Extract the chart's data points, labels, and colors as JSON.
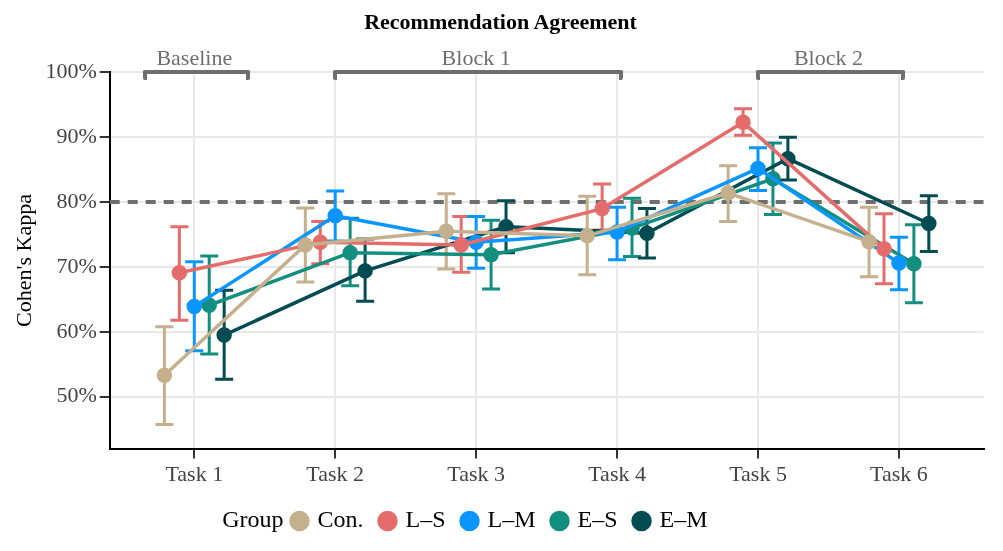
{
  "chart_data": {
    "type": "line",
    "title": "Recommendation Agreement",
    "ylabel": "Cohen's Kappa",
    "legend_title": "Group",
    "categories": [
      "Task 1",
      "Task 2",
      "Task 3",
      "Task 4",
      "Task 5",
      "Task 6"
    ],
    "series": [
      {
        "name": "Con.",
        "color": "#c4b08c",
        "values": [
          53.3,
          73.4,
          75.5,
          74.8,
          81.4,
          73.9
        ],
        "errors": [
          [
            45.7,
            60.8
          ],
          [
            67.7,
            79.1
          ],
          [
            69.7,
            81.3
          ],
          [
            68.8,
            80.9
          ],
          [
            77.0,
            85.6
          ],
          [
            68.5,
            79.2
          ]
        ]
      },
      {
        "name": "L–S",
        "color": "#e46c6a",
        "values": [
          69.1,
          73.8,
          73.4,
          79.0,
          92.3,
          72.8
        ],
        "errors": [
          [
            61.8,
            76.2
          ],
          [
            70.5,
            77.0
          ],
          [
            69.2,
            77.8
          ],
          [
            75.7,
            82.8
          ],
          [
            90.3,
            94.4
          ],
          [
            67.4,
            78.2
          ]
        ]
      },
      {
        "name": "L–M",
        "color": "#0b96ff",
        "values": [
          63.9,
          77.9,
          73.8,
          75.4,
          85.2,
          70.6
        ],
        "errors": [
          [
            57.1,
            70.8
          ],
          [
            74.0,
            81.7
          ],
          [
            69.8,
            77.8
          ],
          [
            71.1,
            79.2
          ],
          [
            81.8,
            88.4
          ],
          [
            66.5,
            74.6
          ]
        ]
      },
      {
        "name": "E–S",
        "color": "#138f80",
        "values": [
          64.1,
          72.2,
          71.9,
          76.0,
          83.6,
          70.5
        ],
        "errors": [
          [
            56.6,
            71.7
          ],
          [
            67.1,
            77.5
          ],
          [
            66.6,
            77.2
          ],
          [
            71.6,
            80.6
          ],
          [
            78.1,
            89.1
          ],
          [
            64.5,
            76.5
          ]
        ]
      },
      {
        "name": "E–M",
        "color": "#004c52",
        "values": [
          59.5,
          69.4,
          76.2,
          75.2,
          86.7,
          76.7
        ],
        "errors": [
          [
            52.7,
            66.4
          ],
          [
            64.7,
            74.3
          ],
          [
            72.2,
            80.2
          ],
          [
            71.4,
            79.0
          ],
          [
            83.4,
            90.0
          ],
          [
            72.4,
            81.0
          ]
        ]
      }
    ],
    "ylim": [
      42,
      100
    ],
    "yticks": [
      {
        "value": 50,
        "label": "50%"
      },
      {
        "value": 60,
        "label": "60%"
      },
      {
        "value": 70,
        "label": "70%"
      },
      {
        "value": 80,
        "label": "80%"
      },
      {
        "value": 90,
        "label": "90%"
      },
      {
        "value": 100,
        "label": "100%"
      }
    ],
    "ref_lines": [
      {
        "axis": "y",
        "value": 80,
        "color": "#6e6e6e",
        "line_style": "dashed"
      }
    ],
    "annotations": [
      "Baseline",
      "Block 1",
      "Block 2"
    ],
    "grid": true,
    "legend": "bottom",
    "marker": "circle",
    "line_style": "solid"
  }
}
